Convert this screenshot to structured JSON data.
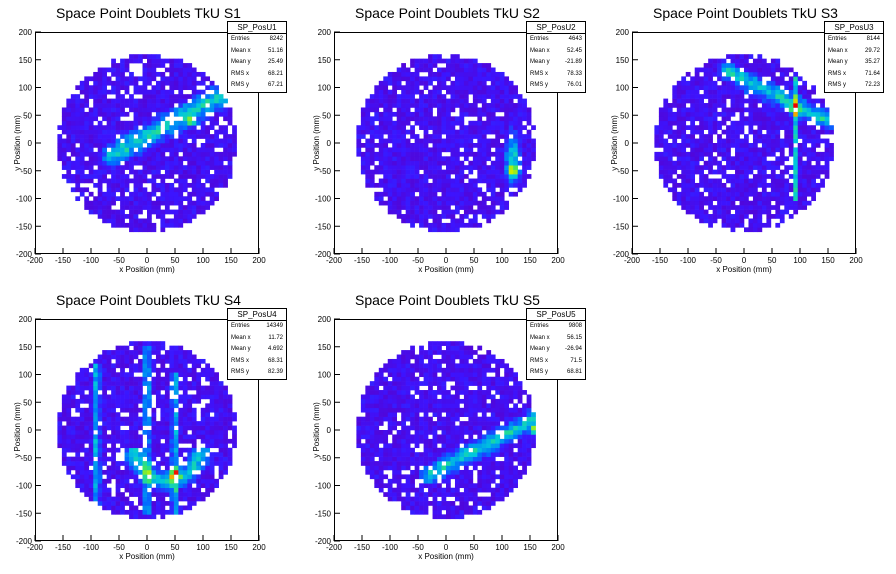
{
  "pads": [
    {
      "title": "Space Point Doublets TkU S1",
      "hist_name": "SP_PosU1",
      "stats": [
        [
          "Entries",
          "8242"
        ],
        [
          "Mean x",
          "51.16"
        ],
        [
          "Mean y",
          "25.49"
        ],
        [
          "RMS x",
          "68.21"
        ],
        [
          "RMS y",
          "67.21"
        ]
      ]
    },
    {
      "title": "Space Point Doublets TkU S2",
      "hist_name": "SP_PosU2",
      "stats": [
        [
          "Entries",
          "4643"
        ],
        [
          "Mean x",
          "52.45"
        ],
        [
          "Mean y",
          "-21.89"
        ],
        [
          "RMS x",
          "78.33"
        ],
        [
          "RMS y",
          "76.01"
        ]
      ]
    },
    {
      "title": "Space Point Doublets TkU S3",
      "hist_name": "SP_PosU3",
      "stats": [
        [
          "Entries",
          "8144"
        ],
        [
          "Mean x",
          "29.72"
        ],
        [
          "Mean y",
          "35.27"
        ],
        [
          "RMS x",
          "71.64"
        ],
        [
          "RMS y",
          "72.23"
        ]
      ]
    },
    {
      "title": "Space Point Doublets TkU S4",
      "hist_name": "SP_PosU4",
      "stats": [
        [
          "Entries",
          "14349"
        ],
        [
          "Mean x",
          "11.72"
        ],
        [
          "Mean y",
          "4.692"
        ],
        [
          "RMS x",
          "68.31"
        ],
        [
          "RMS y",
          "82.39"
        ]
      ]
    },
    {
      "title": "Space Point Doublets TkU S5",
      "hist_name": "SP_PosU5",
      "stats": [
        [
          "Entries",
          "9808"
        ],
        [
          "Mean x",
          "56.15"
        ],
        [
          "Mean y",
          "-26.94"
        ],
        [
          "RMS x",
          "71.5"
        ],
        [
          "RMS y",
          "68.81"
        ]
      ]
    }
  ],
  "chart_data": [
    {
      "type": "heatmap",
      "title": "Space Point Doublets TkU S1",
      "xlabel": "x Position (mm)",
      "ylabel": "y Position (mm)",
      "xlim": [
        -200,
        200
      ],
      "ylim": [
        -200,
        200
      ],
      "xticks": [
        -200,
        -150,
        -100,
        -50,
        0,
        50,
        100,
        150,
        200
      ],
      "yticks": [
        -200,
        -150,
        -100,
        -50,
        0,
        50,
        100,
        150,
        200
      ],
      "detector_radius": 160,
      "bin_width": 8,
      "features": [
        {
          "kind": "diagonal-band",
          "from": [
            -60,
            -20
          ],
          "to": [
            150,
            95
          ],
          "width": 25,
          "peak": [
            80,
            40
          ]
        }
      ]
    },
    {
      "type": "heatmap",
      "title": "Space Point Doublets TkU S2",
      "xlabel": "x Position (mm)",
      "ylabel": "y Position (mm)",
      "xlim": [
        -200,
        200
      ],
      "ylim": [
        -200,
        200
      ],
      "xticks": [
        -200,
        -150,
        -100,
        -50,
        0,
        50,
        100,
        150,
        200
      ],
      "yticks": [
        -200,
        -150,
        -100,
        -50,
        0,
        50,
        100,
        150,
        200
      ],
      "detector_radius": 160,
      "bin_width": 8,
      "features": [
        {
          "kind": "blob",
          "center": [
            120,
            -30
          ],
          "size": [
            20,
            60
          ],
          "peak": [
            120,
            -50
          ]
        }
      ]
    },
    {
      "type": "heatmap",
      "title": "Space Point Doublets TkU S3",
      "xlabel": "x Position (mm)",
      "ylabel": "y Position (mm)",
      "xlim": [
        -200,
        200
      ],
      "ylim": [
        -200,
        200
      ],
      "xticks": [
        -200,
        -150,
        -100,
        -50,
        0,
        50,
        100,
        150,
        200
      ],
      "yticks": [
        -200,
        -150,
        -100,
        -50,
        0,
        50,
        100,
        150,
        200
      ],
      "detector_radius": 160,
      "bin_width": 8,
      "features": [
        {
          "kind": "vertical-band",
          "x": 92,
          "from": -100,
          "to": 120,
          "width": 8,
          "peak": [
            92,
            60
          ]
        },
        {
          "kind": "diagonal-band",
          "from": [
            -30,
            130
          ],
          "to": [
            150,
            40
          ],
          "width": 20
        }
      ]
    },
    {
      "type": "heatmap",
      "title": "Space Point Doublets TkU S4",
      "xlabel": "x Position (mm)",
      "ylabel": "y Position (mm)",
      "xlim": [
        -200,
        200
      ],
      "ylim": [
        -200,
        200
      ],
      "xticks": [
        -200,
        -150,
        -100,
        -50,
        0,
        50,
        100,
        150,
        200
      ],
      "yticks": [
        -200,
        -150,
        -100,
        -50,
        0,
        50,
        100,
        150,
        200
      ],
      "detector_radius": 160,
      "bin_width": 8,
      "features": [
        {
          "kind": "vertical-band",
          "x": -90,
          "from": -140,
          "to": 120,
          "width": 8
        },
        {
          "kind": "vertical-band",
          "x": 0,
          "from": -150,
          "to": 150,
          "width": 8
        },
        {
          "kind": "vertical-band",
          "x": 50,
          "from": -150,
          "to": 100,
          "width": 8
        },
        {
          "kind": "arc",
          "center": [
            35,
            -30
          ],
          "radius": 60,
          "peak": [
            50,
            -80
          ]
        }
      ]
    },
    {
      "type": "heatmap",
      "title": "Space Point Doublets TkU S5",
      "xlabel": "x Position (mm)",
      "ylabel": "y Position (mm)",
      "xlim": [
        -200,
        200
      ],
      "ylim": [
        -200,
        200
      ],
      "xticks": [
        -200,
        -150,
        -100,
        -50,
        0,
        50,
        100,
        150,
        200
      ],
      "yticks": [
        -200,
        -150,
        -100,
        -50,
        0,
        50,
        100,
        150,
        200
      ],
      "detector_radius": 160,
      "bin_width": 8,
      "features": [
        {
          "kind": "diagonal-band",
          "from": [
            -30,
            -80
          ],
          "to": [
            160,
            20
          ],
          "width": 20,
          "peak": [
            160,
            0
          ]
        }
      ]
    }
  ]
}
